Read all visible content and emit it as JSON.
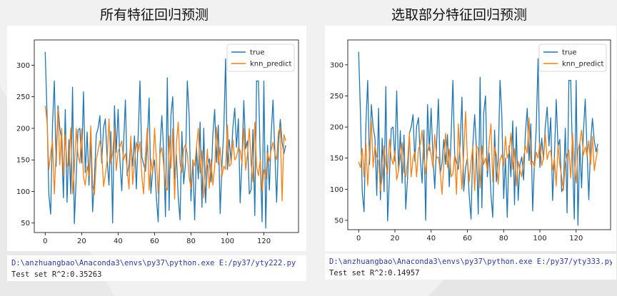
{
  "headings": {
    "left": "所有特征回归预测",
    "right": "选取部分特征回归预测"
  },
  "consoles": {
    "left": {
      "command": "D:\\anzhuangbao\\Anaconda3\\envs\\py37\\python.exe E:/py37/yty222.py",
      "result": "Test set R^2:0.35263"
    },
    "right": {
      "command": "D:\\anzhuangbao\\Anaconda3\\envs\\py37\\python.exe E:/py37/yty333.py",
      "result": "Test set R^2:0.14957"
    }
  },
  "colors": {
    "true": "#1f77b4",
    "knn_predict": "#ff7f0e"
  },
  "chart_data": [
    {
      "id": "left",
      "type": "line",
      "title": "所有特征回归预测",
      "xlim": [
        -6,
        139
      ],
      "ylim": [
        35,
        340
      ],
      "xticks": [
        0,
        20,
        40,
        60,
        80,
        100,
        120
      ],
      "yticks": [
        50,
        100,
        150,
        200,
        250,
        300
      ],
      "legend": {
        "position": "top-right",
        "entries": [
          "true",
          "knn_predict"
        ]
      },
      "x": [
        0,
        1,
        2,
        3,
        4,
        5,
        6,
        7,
        8,
        9,
        10,
        11,
        12,
        13,
        14,
        15,
        16,
        17,
        18,
        19,
        20,
        21,
        22,
        23,
        24,
        25,
        26,
        27,
        28,
        29,
        30,
        31,
        32,
        33,
        34,
        35,
        36,
        37,
        38,
        39,
        40,
        41,
        42,
        43,
        44,
        45,
        46,
        47,
        48,
        49,
        50,
        51,
        52,
        53,
        54,
        55,
        56,
        57,
        58,
        59,
        60,
        61,
        62,
        63,
        64,
        65,
        66,
        67,
        68,
        69,
        70,
        71,
        72,
        73,
        74,
        75,
        76,
        77,
        78,
        79,
        80,
        81,
        82,
        83,
        84,
        85,
        86,
        87,
        88,
        89,
        90,
        91,
        92,
        93,
        94,
        95,
        96,
        97,
        98,
        99,
        100,
        101,
        102,
        103,
        104,
        105,
        106,
        107,
        108,
        109,
        110,
        111,
        112,
        113,
        114,
        115,
        116,
        117,
        118,
        119,
        120,
        121,
        122,
        123,
        124,
        125,
        126,
        127,
        128,
        129,
        130,
        131,
        132
      ],
      "series": [
        {
          "name": "true",
          "values": [
            321,
            220,
            95,
            64,
            205,
            275,
            140,
            236,
            200,
            182,
            90,
            230,
            83,
            182,
            96,
            265,
            49,
            123,
            197,
            200,
            145,
            258,
            130,
            194,
            110,
            187,
            68,
            120,
            190,
            200,
            220,
            145,
            201,
            215,
            150,
            110,
            195,
            50,
            236,
            162,
            230,
            150,
            101,
            174,
            245,
            125,
            142,
            180,
            140,
            188,
            104,
            185,
            275,
            155,
            143,
            132,
            175,
            248,
            97,
            135,
            150,
            90,
            52,
            170,
            220,
            163,
            60,
            280,
            70,
            222,
            250,
            120,
            158,
            91,
            55,
            195,
            112,
            145,
            275,
            220,
            85,
            150,
            55,
            170,
            120,
            210,
            75,
            200,
            82,
            140,
            152,
            115,
            190,
            230,
            146,
            205,
            65,
            142,
            198,
            310,
            135,
            182,
            148,
            201,
            232,
            170,
            215,
            82,
            150,
            244,
            168,
            180,
            96,
            103,
            198,
            62,
            275,
            275,
            153,
            52,
            275,
            42,
            173,
            102,
            190,
            245,
            165,
            83,
            175,
            214,
            178,
            160,
            173
          ]
        },
        {
          "name": "knn_predict",
          "values": [
            236,
            210,
            135,
            160,
            181,
            96,
            165,
            230,
            142,
            200,
            126,
            190,
            140,
            141,
            201,
            96,
            135,
            200,
            158,
            145,
            199,
            123,
            110,
            140,
            125,
            204,
            110,
            95,
            150,
            165,
            180,
            165,
            108,
            126,
            151,
            215,
            145,
            160,
            200,
            133,
            163,
            171,
            180,
            150,
            160,
            135,
            104,
            188,
            111,
            145,
            178,
            163,
            179,
            124,
            96,
            160,
            200,
            102,
            151,
            129,
            200,
            150,
            97,
            159,
            170,
            142,
            108,
            102,
            188,
            137,
            200,
            88,
            175,
            210,
            144,
            130,
            168,
            174,
            160,
            123,
            104,
            150,
            140,
            170,
            200,
            129,
            165,
            90,
            124,
            167,
            105,
            150,
            110,
            138,
            202,
            143,
            170,
            124,
            140,
            135,
            205,
            140,
            143,
            182,
            150,
            155,
            170,
            165,
            145,
            200,
            134,
            160,
            200,
            143,
            115,
            210,
            140,
            125,
            150,
            100,
            135,
            120,
            161,
            148,
            165,
            178,
            160,
            150,
            194,
            202,
            85,
            190,
            180
          ]
        }
      ]
    },
    {
      "id": "right",
      "type": "line",
      "title": "选取部分特征回归预测",
      "xlim": [
        -6,
        139
      ],
      "ylim": [
        35,
        340
      ],
      "xticks": [
        0,
        20,
        40,
        60,
        80,
        100,
        120
      ],
      "yticks": [
        50,
        100,
        150,
        200,
        250,
        300
      ],
      "legend": {
        "position": "top-right",
        "entries": [
          "true",
          "knn_predict"
        ]
      },
      "x": [
        0,
        1,
        2,
        3,
        4,
        5,
        6,
        7,
        8,
        9,
        10,
        11,
        12,
        13,
        14,
        15,
        16,
        17,
        18,
        19,
        20,
        21,
        22,
        23,
        24,
        25,
        26,
        27,
        28,
        29,
        30,
        31,
        32,
        33,
        34,
        35,
        36,
        37,
        38,
        39,
        40,
        41,
        42,
        43,
        44,
        45,
        46,
        47,
        48,
        49,
        50,
        51,
        52,
        53,
        54,
        55,
        56,
        57,
        58,
        59,
        60,
        61,
        62,
        63,
        64,
        65,
        66,
        67,
        68,
        69,
        70,
        71,
        72,
        73,
        74,
        75,
        76,
        77,
        78,
        79,
        80,
        81,
        82,
        83,
        84,
        85,
        86,
        87,
        88,
        89,
        90,
        91,
        92,
        93,
        94,
        95,
        96,
        97,
        98,
        99,
        100,
        101,
        102,
        103,
        104,
        105,
        106,
        107,
        108,
        109,
        110,
        111,
        112,
        113,
        114,
        115,
        116,
        117,
        118,
        119,
        120,
        121,
        122,
        123,
        124,
        125,
        126,
        127,
        128,
        129,
        130,
        131,
        132
      ],
      "series": [
        {
          "name": "true",
          "values": [
            321,
            220,
            95,
            64,
            205,
            275,
            140,
            236,
            200,
            182,
            90,
            230,
            83,
            182,
            96,
            265,
            49,
            123,
            197,
            200,
            145,
            258,
            130,
            194,
            110,
            187,
            68,
            120,
            190,
            200,
            220,
            145,
            201,
            215,
            150,
            110,
            195,
            50,
            236,
            162,
            230,
            150,
            101,
            174,
            245,
            125,
            142,
            180,
            140,
            188,
            104,
            185,
            275,
            155,
            143,
            132,
            175,
            248,
            97,
            135,
            150,
            90,
            52,
            170,
            220,
            163,
            60,
            280,
            70,
            222,
            250,
            120,
            158,
            91,
            55,
            195,
            112,
            145,
            275,
            220,
            85,
            150,
            55,
            170,
            120,
            210,
            75,
            200,
            82,
            140,
            152,
            115,
            190,
            230,
            146,
            205,
            65,
            142,
            198,
            310,
            135,
            182,
            148,
            201,
            232,
            170,
            215,
            82,
            150,
            244,
            168,
            180,
            96,
            103,
            198,
            62,
            275,
            275,
            153,
            52,
            275,
            42,
            173,
            102,
            190,
            245,
            165,
            83,
            175,
            214,
            178,
            160,
            173
          ]
        },
        {
          "name": "knn_predict",
          "values": [
            144,
            135,
            165,
            120,
            175,
            106,
            160,
            210,
            135,
            170,
            152,
            145,
            98,
            120,
            170,
            140,
            125,
            180,
            150,
            140,
            162,
            115,
            130,
            152,
            175,
            128,
            120,
            145,
            190,
            120,
            150,
            160,
            120,
            165,
            172,
            195,
            150,
            125,
            160,
            172,
            155,
            135,
            188,
            150,
            152,
            128,
            92,
            142,
            190,
            135,
            165,
            120,
            125,
            155,
            92,
            205,
            148,
            100,
            160,
            225,
            150,
            112,
            145,
            168,
            98,
            170,
            165,
            102,
            170,
            140,
            150,
            130,
            175,
            205,
            112,
            168,
            155,
            108,
            148,
            155,
            138,
            185,
            150,
            160,
            190,
            132,
            165,
            105,
            145,
            130,
            120,
            150,
            170,
            158,
            215,
            140,
            145,
            135,
            160,
            150,
            175,
            138,
            150,
            188,
            148,
            160,
            162,
            130,
            150,
            105,
            172,
            140,
            120,
            98,
            142,
            157,
            163,
            118,
            190,
            145,
            110,
            162,
            175,
            195,
            155,
            168,
            155,
            178,
            140,
            185,
            130,
            150,
            165
          ]
        }
      ]
    }
  ]
}
